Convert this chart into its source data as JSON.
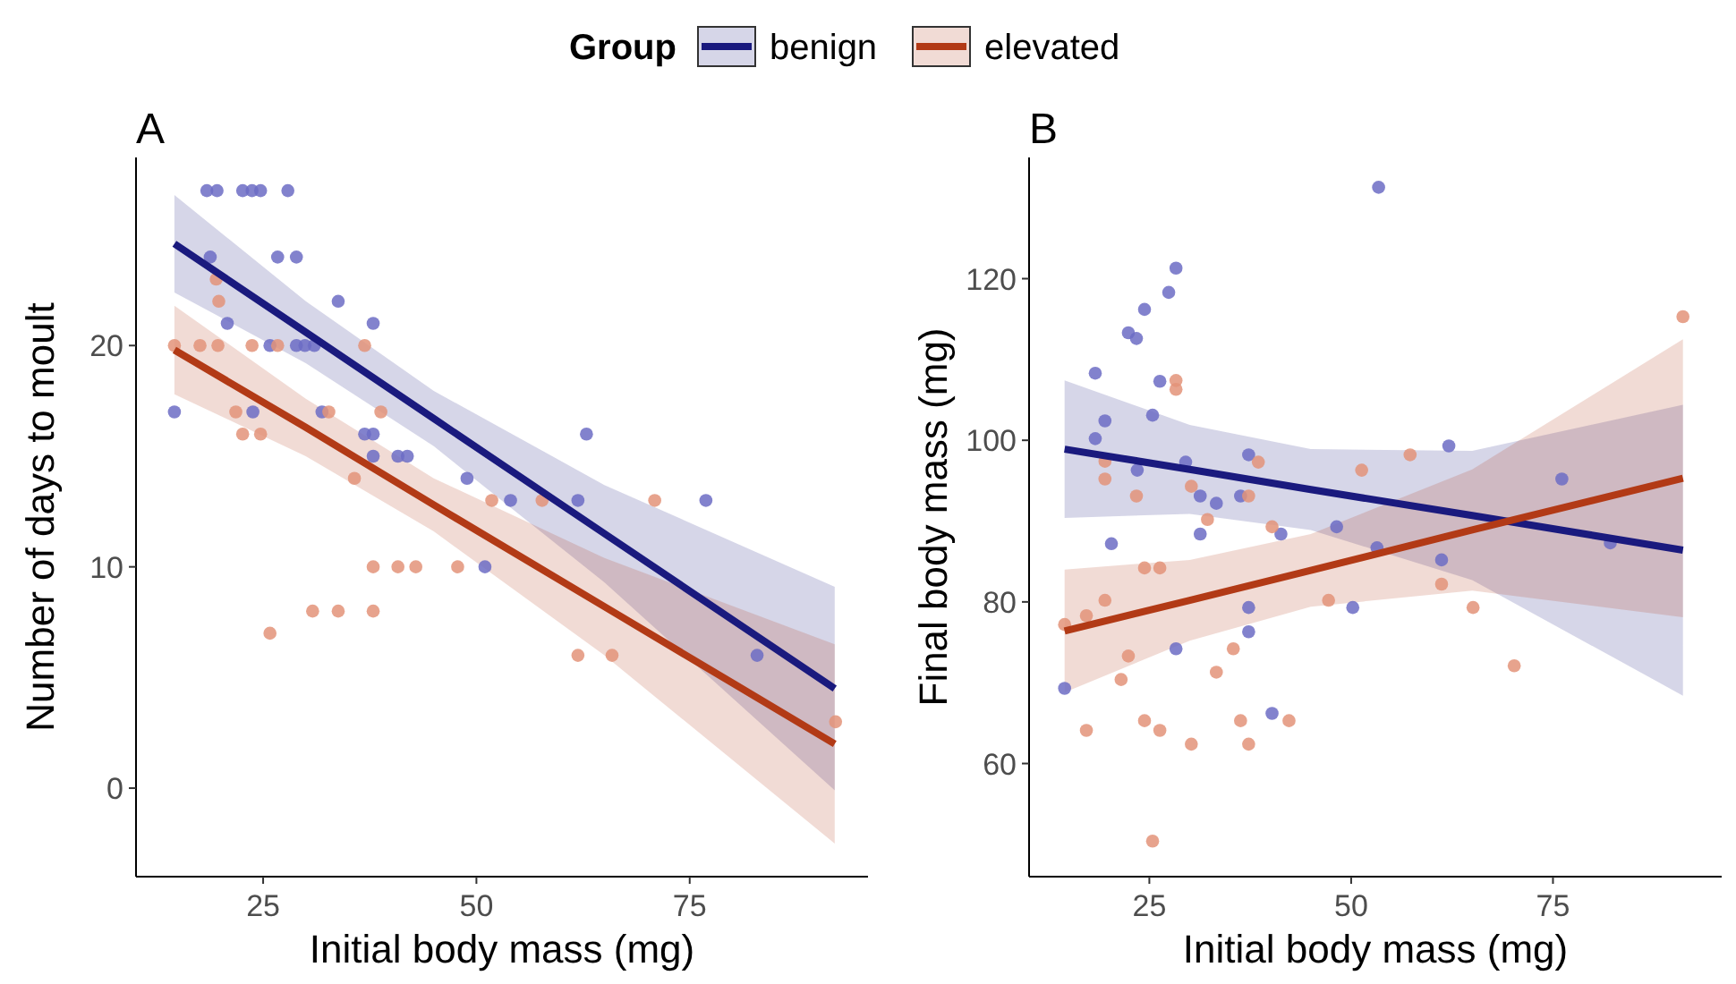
{
  "chart_data": [
    {
      "type": "scatter",
      "title": "A",
      "xlabel": "Initial body mass (mg)",
      "ylabel": "Number of days to moult",
      "xlim": [
        10.1,
        95.9
      ],
      "ylim": [
        -4,
        28.5
      ],
      "xticks": [
        25,
        50,
        75
      ],
      "yticks": [
        0,
        10,
        20
      ],
      "grid": false,
      "legend": "top",
      "legend_title": "Group",
      "series": [
        {
          "marker": "circle",
          "color": "#6c6cc4",
          "x": [
            18.4,
            19.6,
            22.6,
            23.7,
            24.7,
            27.9,
            18.8,
            26.7,
            28.9,
            33.8,
            20.8,
            37.9,
            25.8,
            28.9,
            29.9,
            31.0,
            14.6,
            23.8,
            31.9,
            36.9,
            37.9,
            37.9,
            40.8,
            41.9,
            48.9,
            51.0,
            62.9,
            54.0,
            61.9,
            76.9,
            82.9
          ],
          "values": [
            27,
            27,
            27,
            27,
            27,
            27,
            24,
            24,
            24,
            22,
            21,
            21,
            20,
            20,
            20,
            20,
            17,
            17,
            17,
            16,
            16,
            15,
            15,
            15,
            14,
            10,
            16,
            13,
            13,
            13,
            6
          ]
        },
        {
          "marker": "circle",
          "color": "#e39379",
          "x": [
            19.5,
            19.8,
            14.6,
            17.6,
            19.7,
            23.7,
            26.7,
            36.9,
            21.8,
            32.7,
            38.8,
            22.6,
            24.7,
            35.7,
            51.8,
            57.7,
            70.9,
            37.9,
            40.8,
            42.9,
            47.8,
            30.8,
            33.8,
            37.9,
            25.8,
            61.9,
            65.9,
            92.1
          ],
          "values": [
            23,
            22,
            20,
            20,
            20,
            20,
            20,
            20,
            17,
            17,
            17,
            16,
            16,
            14,
            13,
            13,
            13,
            10,
            10,
            10,
            10,
            8,
            8,
            8,
            7,
            6,
            6,
            3
          ]
        },
        {
          "type": "line",
          "marker": "none",
          "name": "benign",
          "color": "#1a1a7e",
          "x": [
            14.6,
            30,
            45,
            65,
            92
          ],
          "values": [
            24.6,
            20.6,
            16.7,
            11.5,
            4.5
          ],
          "lower": [
            22.4,
            19.2,
            15.45,
            9.3,
            -0.1
          ],
          "upper": [
            26.8,
            22.0,
            17.95,
            13.7,
            9.1
          ]
        },
        {
          "type": "line",
          "marker": "none",
          "name": "elevated",
          "color": "#b23a16",
          "x": [
            14.6,
            30,
            45,
            65,
            92
          ],
          "values": [
            19.8,
            16.3,
            12.8,
            8.2,
            2.0
          ],
          "lower": [
            17.8,
            15.0,
            11.6,
            6.0,
            -2.5
          ],
          "upper": [
            21.8,
            17.6,
            14.0,
            10.4,
            6.5
          ]
        }
      ]
    },
    {
      "type": "scatter",
      "title": "B",
      "xlabel": "Initial body mass (mg)",
      "ylabel": "Final body mass (mg)",
      "xlim": [
        10.1,
        95.9
      ],
      "ylim": [
        46,
        135
      ],
      "xticks": [
        25,
        50,
        75
      ],
      "yticks": [
        60,
        80,
        100,
        120
      ],
      "grid": false,
      "series": [
        {
          "marker": "circle",
          "color": "#6c6cc4",
          "x": [
            28.3,
            27.4,
            24.4,
            22.4,
            23.4,
            18.3,
            26.3,
            25.4,
            19.5,
            18.3,
            23.5,
            37.3,
            29.5,
            31.3,
            33.3,
            36.3,
            41.3,
            31.3,
            20.3,
            48.2,
            50.2,
            37.3,
            37.3,
            28.3,
            14.5,
            40.2,
            53.4,
            62.1,
            76.1,
            61.2,
            82.1,
            53.2
          ],
          "values": [
            121.3,
            118.3,
            116.2,
            113.3,
            112.6,
            108.3,
            107.3,
            103.1,
            102.4,
            100.2,
            96.3,
            98.2,
            97.3,
            93.1,
            92.2,
            93.1,
            88.4,
            88.4,
            87.2,
            89.3,
            79.3,
            79.3,
            76.3,
            74.2,
            69.3,
            66.2,
            131.3,
            99.3,
            95.2,
            85.2,
            87.3,
            86.7
          ]
        },
        {
          "marker": "circle",
          "color": "#e39379",
          "x": [
            28.3,
            28.3,
            19.5,
            19.5,
            23.4,
            38.5,
            30.2,
            32.2,
            37.3,
            40.2,
            24.4,
            26.3,
            19.5,
            17.2,
            14.5,
            22.4,
            35.4,
            33.3,
            21.5,
            24.4,
            26.3,
            17.2,
            36.3,
            42.3,
            30.2,
            37.3,
            25.4,
            47.2,
            51.3,
            57.3,
            61.2,
            65.1,
            70.2,
            91.1
          ],
          "values": [
            107.4,
            106.3,
            97.4,
            95.2,
            93.1,
            97.3,
            94.3,
            90.2,
            93.1,
            89.3,
            84.2,
            84.2,
            80.2,
            78.3,
            77.2,
            73.3,
            74.2,
            71.3,
            70.4,
            65.3,
            64.1,
            64.1,
            65.3,
            65.3,
            62.4,
            62.4,
            50.4,
            80.2,
            96.3,
            98.2,
            82.2,
            79.3,
            72.1,
            115.3
          ]
        },
        {
          "type": "line",
          "marker": "none",
          "color": "#1a1a7e",
          "x": [
            14.5,
            30,
            45,
            65,
            91.1
          ],
          "values": [
            98.9,
            96.4,
            93.9,
            90.7,
            86.4
          ],
          "lower": [
            90.4,
            90.9,
            88.9,
            82.7,
            68.4
          ],
          "upper": [
            107.4,
            101.9,
            98.9,
            98.7,
            104.4
          ]
        },
        {
          "type": "line",
          "marker": "none",
          "color": "#b23a16",
          "x": [
            14.5,
            30,
            45,
            65,
            91.1
          ],
          "values": [
            76.4,
            80.2,
            83.9,
            88.9,
            95.3
          ],
          "lower": [
            68.8,
            75.2,
            79.4,
            81.4,
            78.1
          ],
          "upper": [
            84.0,
            85.2,
            88.4,
            96.4,
            112.5
          ]
        }
      ]
    }
  ]
}
